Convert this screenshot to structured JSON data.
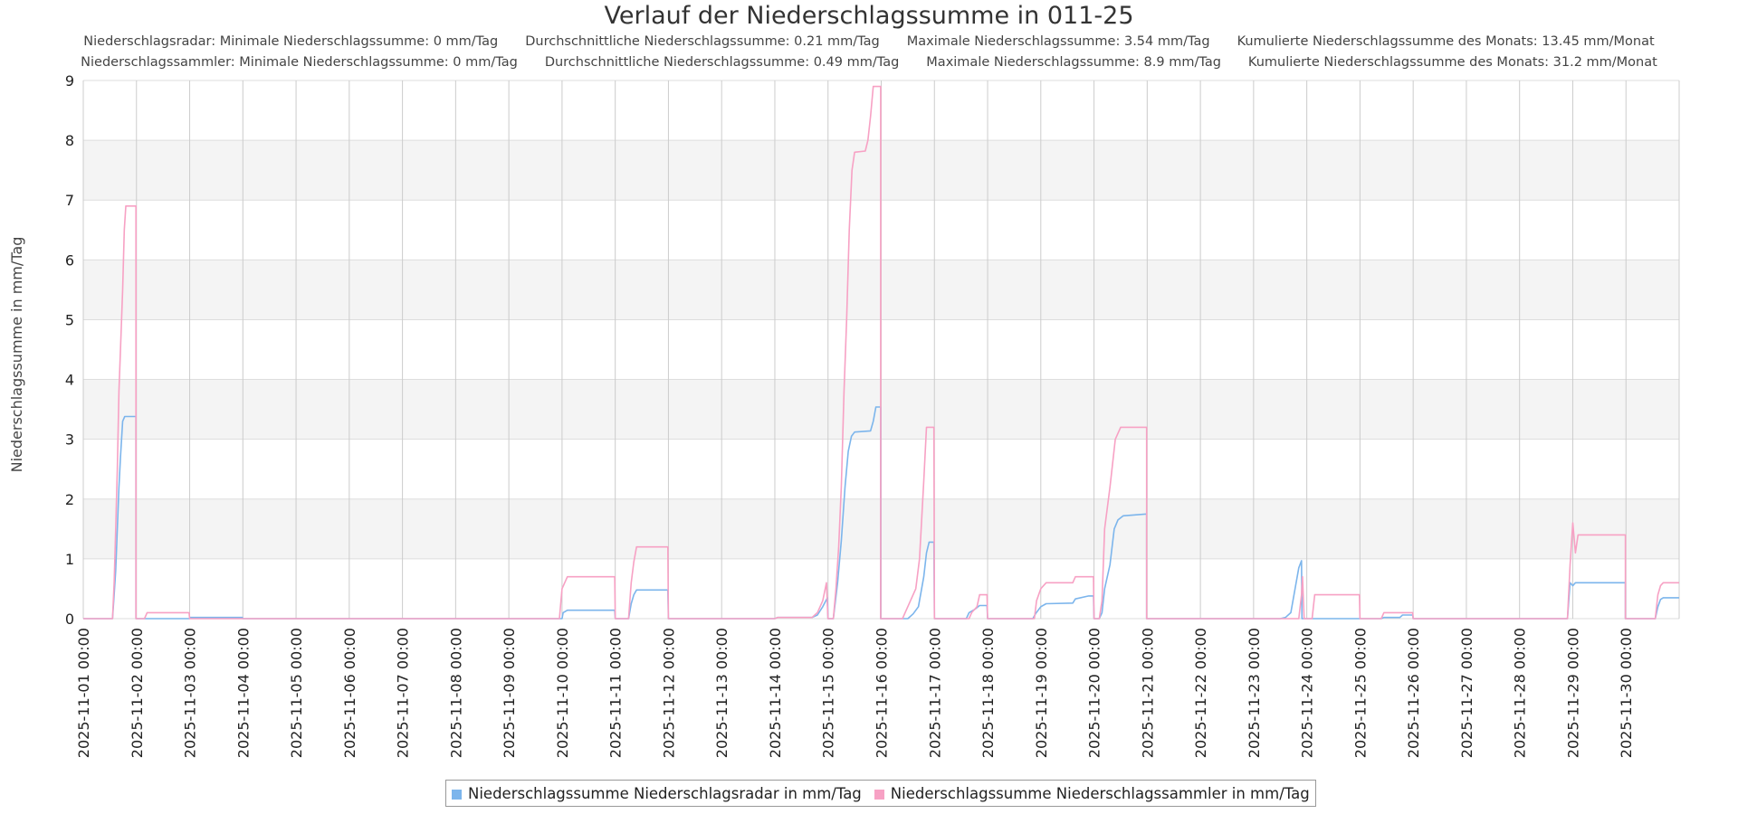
{
  "chart_data": {
    "type": "line",
    "title": "Verlauf der Niederschlagssumme in 011-25",
    "subtitle_lines": [
      [
        "Niederschlagsradar: Minimale Niederschlagssumme: 0 mm/Tag",
        "Durchschnittliche Niederschlagssumme: 0.21 mm/Tag",
        "Maximale Niederschlagssumme: 3.54 mm/Tag",
        "Kumulierte Niederschlagssumme des Monats: 13.45 mm/Monat"
      ],
      [
        "Niederschlagssammler: Minimale Niederschlagssumme: 0 mm/Tag",
        "Durchschnittliche Niederschlagssumme: 0.49 mm/Tag",
        "Maximale Niederschlagssumme: 8.9 mm/Tag",
        "Kumulierte Niederschlagssumme des Monats: 31.2 mm/Monat"
      ]
    ],
    "ylabel": "Niederschlagssumme in mm/Tag",
    "xlabel": "",
    "ylim": [
      0,
      9
    ],
    "yticks": [
      0,
      1,
      2,
      3,
      4,
      5,
      6,
      7,
      8,
      9
    ],
    "xlim_days": [
      1,
      31
    ],
    "xticks": [
      "2025-11-01 00:00",
      "2025-11-02 00:00",
      "2025-11-03 00:00",
      "2025-11-04 00:00",
      "2025-11-05 00:00",
      "2025-11-06 00:00",
      "2025-11-07 00:00",
      "2025-11-08 00:00",
      "2025-11-09 00:00",
      "2025-11-10 00:00",
      "2025-11-11 00:00",
      "2025-11-12 00:00",
      "2025-11-13 00:00",
      "2025-11-14 00:00",
      "2025-11-15 00:00",
      "2025-11-16 00:00",
      "2025-11-17 00:00",
      "2025-11-18 00:00",
      "2025-11-19 00:00",
      "2025-11-20 00:00",
      "2025-11-21 00:00",
      "2025-11-22 00:00",
      "2025-11-23 00:00",
      "2025-11-24 00:00",
      "2025-11-25 00:00",
      "2025-11-26 00:00",
      "2025-11-27 00:00",
      "2025-11-28 00:00",
      "2025-11-29 00:00",
      "2025-11-30 00:00"
    ],
    "grid": true,
    "alternating_bands": true,
    "legend_position": "bottom-center",
    "series": [
      {
        "name": "Niederschlagssumme Niederschlagsradar in mm/Tag",
        "color": "#7cb5ec",
        "points": [
          [
            1.0,
            0
          ],
          [
            1.55,
            0
          ],
          [
            1.58,
            0.4
          ],
          [
            1.61,
            0.8
          ],
          [
            1.64,
            1.5
          ],
          [
            1.67,
            2.2
          ],
          [
            1.7,
            2.7
          ],
          [
            1.74,
            3.3
          ],
          [
            1.78,
            3.38
          ],
          [
            1.99,
            3.38
          ],
          [
            1.99,
            0
          ],
          [
            3.0,
            0
          ],
          [
            3.01,
            0.02
          ],
          [
            3.99,
            0.02
          ],
          [
            4.0,
            0
          ],
          [
            10.0,
            0
          ],
          [
            10.02,
            0.1
          ],
          [
            10.1,
            0.14
          ],
          [
            10.99,
            0.14
          ],
          [
            11.0,
            0
          ],
          [
            11.25,
            0
          ],
          [
            11.3,
            0.25
          ],
          [
            11.35,
            0.4
          ],
          [
            11.4,
            0.48
          ],
          [
            11.99,
            0.48
          ],
          [
            12.0,
            0
          ],
          [
            14.0,
            0
          ],
          [
            14.05,
            0.02
          ],
          [
            14.7,
            0.02
          ],
          [
            14.8,
            0.06
          ],
          [
            14.9,
            0.2
          ],
          [
            14.99,
            0.35
          ],
          [
            15.0,
            0
          ],
          [
            15.1,
            0
          ],
          [
            15.18,
            0.6
          ],
          [
            15.25,
            1.3
          ],
          [
            15.32,
            2.2
          ],
          [
            15.38,
            2.8
          ],
          [
            15.44,
            3.05
          ],
          [
            15.5,
            3.12
          ],
          [
            15.8,
            3.14
          ],
          [
            15.85,
            3.3
          ],
          [
            15.9,
            3.54
          ],
          [
            15.99,
            3.54
          ],
          [
            15.99,
            0
          ],
          [
            16.5,
            0
          ],
          [
            16.6,
            0.08
          ],
          [
            16.7,
            0.2
          ],
          [
            16.8,
            0.7
          ],
          [
            16.85,
            1.1
          ],
          [
            16.9,
            1.28
          ],
          [
            16.99,
            1.28
          ],
          [
            17.0,
            0
          ],
          [
            17.6,
            0
          ],
          [
            17.65,
            0.1
          ],
          [
            17.75,
            0.15
          ],
          [
            17.85,
            0.22
          ],
          [
            17.99,
            0.22
          ],
          [
            18.0,
            0
          ],
          [
            18.85,
            0
          ],
          [
            18.9,
            0.08
          ],
          [
            19.0,
            0.2
          ],
          [
            19.1,
            0.25
          ],
          [
            19.6,
            0.26
          ],
          [
            19.65,
            0.33
          ],
          [
            19.9,
            0.38
          ],
          [
            19.99,
            0.38
          ],
          [
            20.0,
            0
          ],
          [
            20.1,
            0
          ],
          [
            20.15,
            0.1
          ],
          [
            20.2,
            0.5
          ],
          [
            20.3,
            0.9
          ],
          [
            20.38,
            1.5
          ],
          [
            20.45,
            1.65
          ],
          [
            20.55,
            1.72
          ],
          [
            20.99,
            1.75
          ],
          [
            20.99,
            0
          ],
          [
            23.5,
            0
          ],
          [
            23.6,
            0.02
          ],
          [
            23.7,
            0.1
          ],
          [
            23.78,
            0.5
          ],
          [
            23.85,
            0.85
          ],
          [
            23.9,
            0.97
          ],
          [
            23.91,
            0
          ],
          [
            25.4,
            0
          ],
          [
            25.45,
            0.02
          ],
          [
            25.75,
            0.02
          ],
          [
            25.8,
            0.06
          ],
          [
            25.99,
            0.06
          ],
          [
            26.0,
            0
          ],
          [
            28.9,
            0
          ],
          [
            28.95,
            0.6
          ],
          [
            29.0,
            0.55
          ],
          [
            29.05,
            0.6
          ],
          [
            29.99,
            0.6
          ],
          [
            29.99,
            0
          ],
          [
            30.55,
            0
          ],
          [
            30.6,
            0.2
          ],
          [
            30.65,
            0.32
          ],
          [
            30.7,
            0.35
          ],
          [
            31.0,
            0.35
          ]
        ]
      },
      {
        "name": "Niederschlagssumme Niederschlagssammler in mm/Tag",
        "color": "#f7a1c4",
        "points": [
          [
            1.0,
            0
          ],
          [
            1.55,
            0
          ],
          [
            1.58,
            0.6
          ],
          [
            1.61,
            1.5
          ],
          [
            1.64,
            2.5
          ],
          [
            1.67,
            3.8
          ],
          [
            1.7,
            4.5
          ],
          [
            1.74,
            5.5
          ],
          [
            1.77,
            6.5
          ],
          [
            1.8,
            6.9
          ],
          [
            1.99,
            6.9
          ],
          [
            1.99,
            0
          ],
          [
            2.15,
            0
          ],
          [
            2.2,
            0.1
          ],
          [
            2.99,
            0.1
          ],
          [
            3.0,
            0
          ],
          [
            9.95,
            0
          ],
          [
            10.0,
            0.5
          ],
          [
            10.1,
            0.7
          ],
          [
            10.99,
            0.7
          ],
          [
            11.0,
            0
          ],
          [
            11.25,
            0
          ],
          [
            11.3,
            0.6
          ],
          [
            11.35,
            0.95
          ],
          [
            11.4,
            1.2
          ],
          [
            11.99,
            1.2
          ],
          [
            12.0,
            0
          ],
          [
            14.0,
            0
          ],
          [
            14.05,
            0.02
          ],
          [
            14.7,
            0.02
          ],
          [
            14.8,
            0.1
          ],
          [
            14.9,
            0.3
          ],
          [
            14.97,
            0.6
          ],
          [
            15.0,
            0
          ],
          [
            15.1,
            0
          ],
          [
            15.15,
            0.5
          ],
          [
            15.2,
            1.2
          ],
          [
            15.25,
            2.2
          ],
          [
            15.3,
            3.8
          ],
          [
            15.35,
            5.0
          ],
          [
            15.4,
            6.5
          ],
          [
            15.45,
            7.5
          ],
          [
            15.5,
            7.8
          ],
          [
            15.7,
            7.82
          ],
          [
            15.75,
            8.0
          ],
          [
            15.8,
            8.4
          ],
          [
            15.85,
            8.9
          ],
          [
            15.99,
            8.9
          ],
          [
            15.99,
            0
          ],
          [
            16.4,
            0
          ],
          [
            16.45,
            0.1
          ],
          [
            16.55,
            0.3
          ],
          [
            16.65,
            0.5
          ],
          [
            16.72,
            1.0
          ],
          [
            16.8,
            2.3
          ],
          [
            16.85,
            3.2
          ],
          [
            16.99,
            3.2
          ],
          [
            17.0,
            0
          ],
          [
            17.65,
            0
          ],
          [
            17.7,
            0.1
          ],
          [
            17.8,
            0.2
          ],
          [
            17.85,
            0.4
          ],
          [
            17.99,
            0.4
          ],
          [
            18.0,
            0
          ],
          [
            18.88,
            0
          ],
          [
            18.92,
            0.3
          ],
          [
            19.0,
            0.5
          ],
          [
            19.1,
            0.6
          ],
          [
            19.6,
            0.6
          ],
          [
            19.65,
            0.7
          ],
          [
            19.99,
            0.7
          ],
          [
            20.0,
            0
          ],
          [
            20.1,
            0
          ],
          [
            20.15,
            0.3
          ],
          [
            20.2,
            1.5
          ],
          [
            20.3,
            2.2
          ],
          [
            20.4,
            3.0
          ],
          [
            20.5,
            3.2
          ],
          [
            20.99,
            3.2
          ],
          [
            20.99,
            0
          ],
          [
            23.85,
            0
          ],
          [
            23.9,
            0.4
          ],
          [
            23.92,
            0.7
          ],
          [
            23.95,
            0
          ],
          [
            24.1,
            0
          ],
          [
            24.15,
            0.4
          ],
          [
            24.99,
            0.4
          ],
          [
            25.0,
            0
          ],
          [
            25.4,
            0
          ],
          [
            25.45,
            0.1
          ],
          [
            25.99,
            0.1
          ],
          [
            26.0,
            0
          ],
          [
            28.9,
            0
          ],
          [
            28.95,
            0.9
          ],
          [
            29.0,
            1.6
          ],
          [
            29.05,
            1.1
          ],
          [
            29.1,
            1.4
          ],
          [
            29.99,
            1.4
          ],
          [
            29.99,
            0
          ],
          [
            30.55,
            0
          ],
          [
            30.6,
            0.4
          ],
          [
            30.65,
            0.55
          ],
          [
            30.7,
            0.6
          ],
          [
            31.0,
            0.6
          ]
        ]
      }
    ]
  }
}
